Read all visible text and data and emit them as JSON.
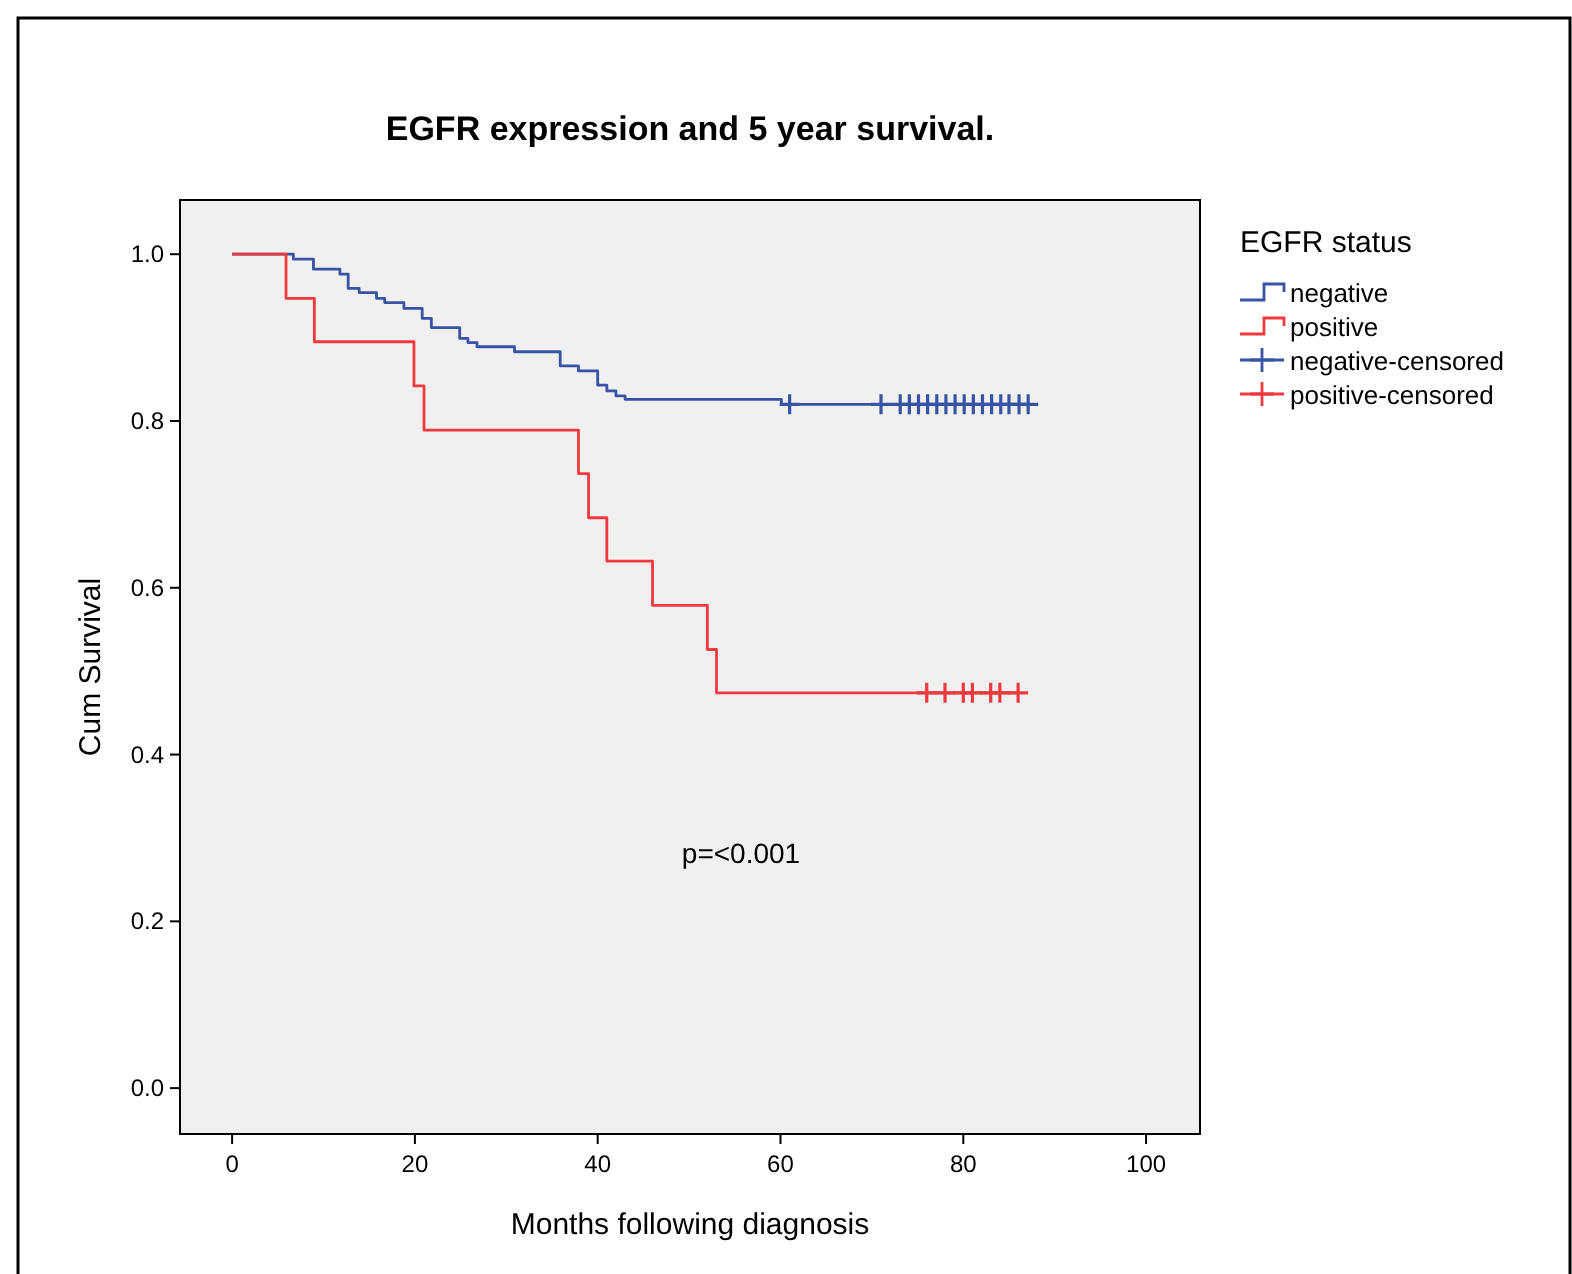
{
  "chart_data": {
    "type": "step",
    "title": "EGFR expression and 5 year survival.",
    "xlabel": "Months following diagnosis",
    "ylabel": "Cum Survival",
    "legend_title": "EGFR status",
    "annotations": [
      "p=<0.001"
    ],
    "xlim": [
      -5.7,
      105.9
    ],
    "ylim": [
      -0.055,
      1.065
    ],
    "xticks": [
      0,
      20,
      40,
      60,
      80,
      100
    ],
    "yticks": [
      {
        "value": 0,
        "label": "0.0"
      },
      {
        "value": 0.2,
        "label": "0.2"
      },
      {
        "value": 0.4,
        "label": "0.4"
      },
      {
        "value": 0.6,
        "label": "0.6"
      },
      {
        "value": 0.8,
        "label": "0.8"
      },
      {
        "value": 1,
        "label": "1.0"
      }
    ],
    "legend": "right",
    "grid": false,
    "series": [
      {
        "name": "negative",
        "color": "#3953a4",
        "x": [
          0,
          6.7,
          8.9,
          11.8,
          12.7,
          13.9,
          15.8,
          16.7,
          18.8,
          20.8,
          21.8,
          24.9,
          25.8,
          26.8,
          30.9,
          35.9,
          37.9,
          40,
          41,
          42,
          43,
          60.1,
          88
        ],
        "values": [
          1,
          0.994,
          0.982,
          0.976,
          0.959,
          0.954,
          0.947,
          0.942,
          0.935,
          0.923,
          0.912,
          0.899,
          0.894,
          0.889,
          0.883,
          0.866,
          0.86,
          0.843,
          0.836,
          0.83,
          0.826,
          0.82,
          0.82
        ]
      },
      {
        "name": "positive",
        "color": "#ee3a3f",
        "x": [
          0,
          5.9,
          9,
          19.9,
          21,
          37.9,
          39,
          41,
          46,
          52,
          53,
          86
        ],
        "values": [
          1,
          0.947,
          0.895,
          0.842,
          0.789,
          0.737,
          0.684,
          0.632,
          0.579,
          0.526,
          0.474,
          0.474
        ]
      },
      {
        "name": "negative-censored",
        "type": "scatter",
        "marker": "cross",
        "color": "#3953a4",
        "x": [
          61,
          71,
          73.1,
          74.1,
          75.1,
          76.1,
          77.1,
          78.1,
          79.1,
          80.1,
          81.1,
          82.1,
          83.1,
          84.1,
          85,
          86.1,
          87.1
        ],
        "values": [
          0.82,
          0.82,
          0.82,
          0.82,
          0.82,
          0.82,
          0.82,
          0.82,
          0.82,
          0.82,
          0.82,
          0.82,
          0.82,
          0.82,
          0.82,
          0.82,
          0.82
        ]
      },
      {
        "name": "positive-censored",
        "type": "scatter",
        "marker": "cross",
        "color": "#ee3a3f",
        "x": [
          76,
          78,
          80,
          81,
          83,
          84,
          86
        ],
        "values": [
          0.474,
          0.474,
          0.474,
          0.474,
          0.474,
          0.474,
          0.474
        ]
      }
    ]
  }
}
